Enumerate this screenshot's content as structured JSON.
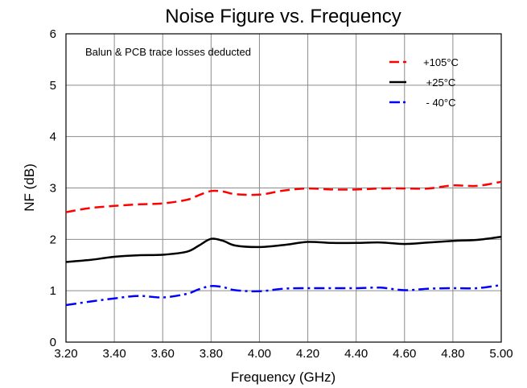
{
  "chart_data": {
    "type": "line",
    "title": "Noise Figure vs. Frequency",
    "xlabel": "Frequency (GHz)",
    "ylabel": "NF (dB)",
    "xlim": [
      3.2,
      5.0
    ],
    "ylim": [
      0,
      6
    ],
    "x_ticks": [
      "3.20",
      "3.40",
      "3.60",
      "3.80",
      "4.00",
      "4.20",
      "4.40",
      "4.60",
      "4.80",
      "5.00"
    ],
    "y_ticks": [
      "0",
      "1",
      "2",
      "3",
      "4",
      "5",
      "6"
    ],
    "grid": true,
    "legend_position": "top-right",
    "annotation": "Balun & PCB trace losses deducted",
    "series": [
      {
        "name": "+105°C",
        "color": "#ff0000",
        "style": "dashed",
        "x": [
          3.2,
          3.3,
          3.4,
          3.5,
          3.6,
          3.7,
          3.75,
          3.8,
          3.85,
          3.9,
          4.0,
          4.1,
          4.2,
          4.3,
          4.4,
          4.5,
          4.6,
          4.7,
          4.8,
          4.9,
          5.0
        ],
        "y": [
          2.53,
          2.61,
          2.65,
          2.68,
          2.7,
          2.77,
          2.86,
          2.94,
          2.93,
          2.88,
          2.87,
          2.95,
          2.99,
          2.97,
          2.97,
          2.99,
          2.99,
          2.99,
          3.05,
          3.04,
          3.12
        ]
      },
      {
        "name": "+25°C",
        "color": "#000000",
        "style": "solid",
        "x": [
          3.2,
          3.3,
          3.4,
          3.5,
          3.6,
          3.7,
          3.75,
          3.8,
          3.85,
          3.9,
          4.0,
          4.1,
          4.2,
          4.3,
          4.4,
          4.5,
          4.6,
          4.7,
          4.8,
          4.9,
          5.0
        ],
        "y": [
          1.56,
          1.6,
          1.66,
          1.69,
          1.7,
          1.76,
          1.88,
          2.01,
          1.97,
          1.88,
          1.85,
          1.89,
          1.95,
          1.93,
          1.93,
          1.94,
          1.91,
          1.94,
          1.97,
          1.99,
          2.05
        ]
      },
      {
        "name": "- 40°C",
        "color": "#0000ff",
        "style": "dashdot",
        "x": [
          3.2,
          3.3,
          3.4,
          3.5,
          3.6,
          3.7,
          3.75,
          3.8,
          3.85,
          3.9,
          4.0,
          4.1,
          4.2,
          4.3,
          4.4,
          4.5,
          4.6,
          4.7,
          4.8,
          4.9,
          5.0
        ],
        "y": [
          0.72,
          0.79,
          0.85,
          0.9,
          0.87,
          0.94,
          1.03,
          1.09,
          1.07,
          1.01,
          0.99,
          1.04,
          1.05,
          1.05,
          1.05,
          1.06,
          1.01,
          1.04,
          1.05,
          1.05,
          1.11
        ]
      }
    ]
  }
}
